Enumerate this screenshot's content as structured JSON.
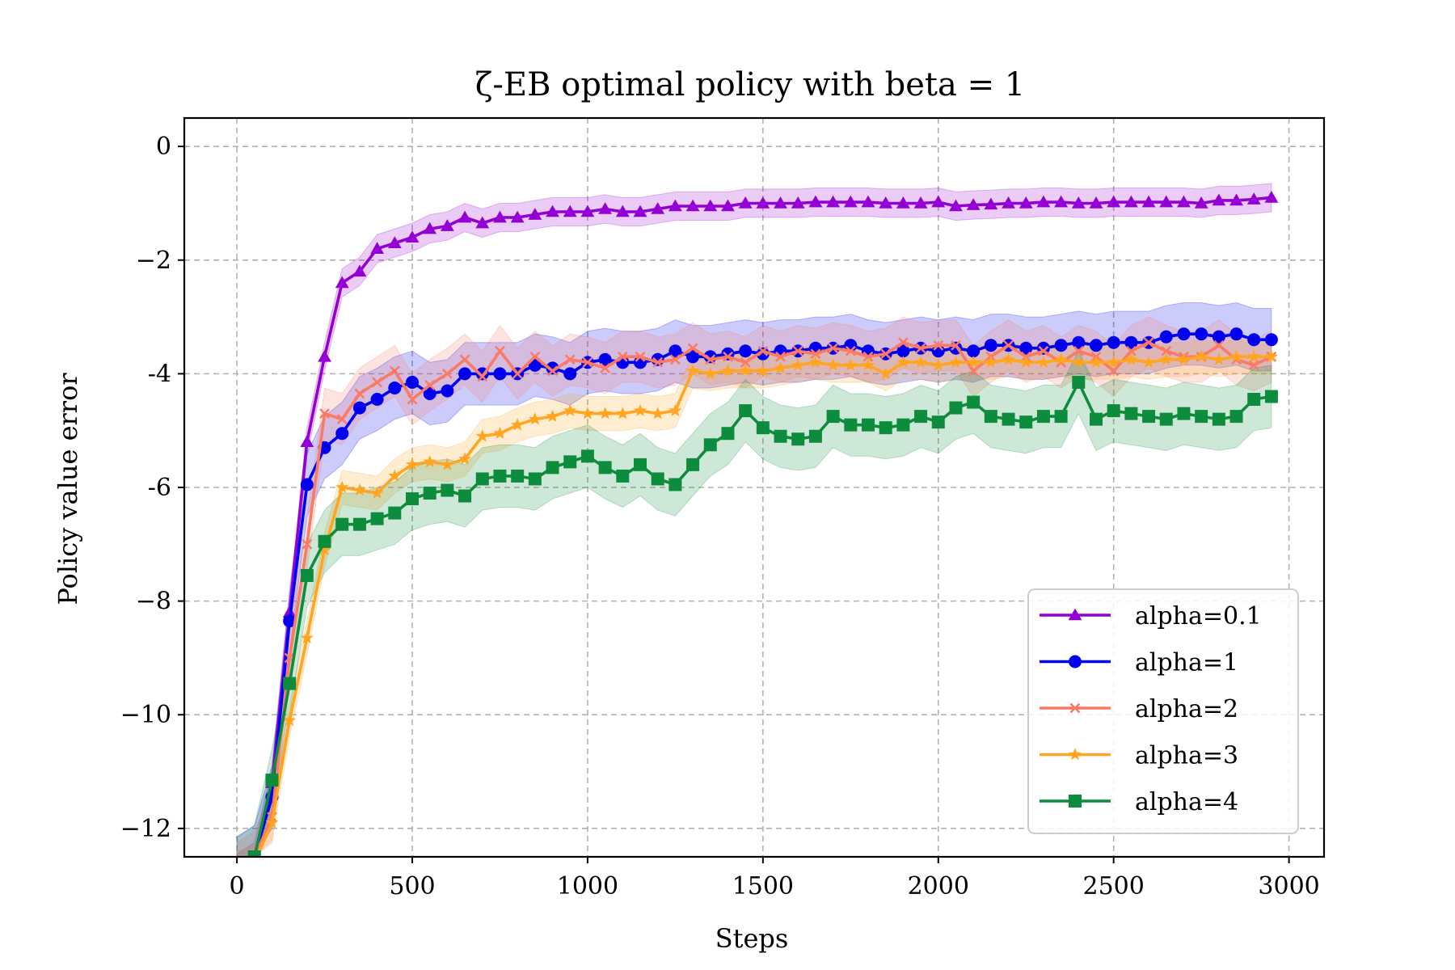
{
  "chart_data": {
    "type": "line",
    "title": "ζ-EB optimal policy with beta = 1",
    "xlabel": "Steps",
    "ylabel": "Policy value error",
    "xlim": [
      -150,
      3100
    ],
    "ylim": [
      -12.5,
      0.5
    ],
    "xticks": [
      0,
      500,
      1000,
      1500,
      2000,
      2500,
      3000
    ],
    "xtick_labels": [
      "0",
      "500",
      "1000",
      "1500",
      "2000",
      "2500",
      "3000"
    ],
    "yticks": [
      0,
      -2,
      -4,
      -6,
      -8,
      -10,
      -12
    ],
    "ytick_labels": [
      "0",
      "−2",
      "-4",
      "-6",
      "−8",
      "−10",
      "−12"
    ],
    "grid": true,
    "legend_position": "lower-right",
    "x": [
      0,
      50,
      100,
      150,
      200,
      250,
      300,
      350,
      400,
      450,
      500,
      550,
      600,
      650,
      700,
      750,
      800,
      850,
      900,
      950,
      1000,
      1050,
      1100,
      1150,
      1200,
      1250,
      1300,
      1350,
      1400,
      1450,
      1500,
      1550,
      1600,
      1650,
      1700,
      1750,
      1800,
      1850,
      1900,
      1950,
      2000,
      2050,
      2100,
      2150,
      2200,
      2250,
      2300,
      2350,
      2400,
      2450,
      2500,
      2550,
      2600,
      2650,
      2700,
      2750,
      2800,
      2850,
      2900,
      2950
    ],
    "series": [
      {
        "name": "alpha=0.1",
        "color": "#9400d3",
        "marker": "triangle",
        "values": [
          -12.7,
          -12.5,
          -11.2,
          -8.2,
          -5.2,
          -3.7,
          -2.4,
          -2.2,
          -1.8,
          -1.7,
          -1.6,
          -1.45,
          -1.4,
          -1.25,
          -1.35,
          -1.25,
          -1.25,
          -1.2,
          -1.15,
          -1.15,
          -1.15,
          -1.1,
          -1.15,
          -1.15,
          -1.1,
          -1.05,
          -1.05,
          -1.05,
          -1.05,
          -1.0,
          -1.0,
          -1.0,
          -1.0,
          -0.98,
          -0.98,
          -0.98,
          -0.98,
          -1.0,
          -1.0,
          -1.0,
          -0.98,
          -1.05,
          -1.03,
          -1.02,
          -1.0,
          -1.0,
          -0.98,
          -0.98,
          -1.0,
          -1.0,
          -0.98,
          -0.98,
          -0.98,
          -0.98,
          -0.98,
          -1.0,
          -0.95,
          -0.95,
          -0.93,
          -0.9
        ],
        "band": 0.25
      },
      {
        "name": "alpha=1",
        "color": "#0000ee",
        "marker": "circle",
        "values": [
          -12.7,
          -12.5,
          -11.45,
          -8.35,
          -5.95,
          -5.3,
          -5.05,
          -4.6,
          -4.45,
          -4.25,
          -4.15,
          -4.35,
          -4.3,
          -4.0,
          -4.0,
          -4.0,
          -4.0,
          -3.85,
          -3.9,
          -4.0,
          -3.8,
          -3.75,
          -3.8,
          -3.8,
          -3.75,
          -3.6,
          -3.7,
          -3.7,
          -3.65,
          -3.6,
          -3.65,
          -3.6,
          -3.6,
          -3.55,
          -3.55,
          -3.5,
          -3.6,
          -3.65,
          -3.6,
          -3.55,
          -3.6,
          -3.55,
          -3.6,
          -3.5,
          -3.5,
          -3.55,
          -3.55,
          -3.5,
          -3.45,
          -3.5,
          -3.45,
          -3.45,
          -3.45,
          -3.35,
          -3.3,
          -3.3,
          -3.35,
          -3.3,
          -3.4,
          -3.4
        ],
        "band": 0.55
      },
      {
        "name": "alpha=2",
        "color": "#fa7a64",
        "marker": "x",
        "values": [
          -12.7,
          -12.5,
          -11.8,
          -9.0,
          -7.0,
          -4.7,
          -4.8,
          -4.35,
          -4.15,
          -3.95,
          -4.45,
          -4.2,
          -4.0,
          -3.75,
          -4.05,
          -3.6,
          -4.0,
          -3.7,
          -3.95,
          -3.75,
          -3.8,
          -3.9,
          -3.7,
          -3.7,
          -3.8,
          -3.75,
          -3.55,
          -3.75,
          -3.7,
          -3.8,
          -3.6,
          -3.7,
          -3.6,
          -3.65,
          -3.55,
          -3.6,
          -3.7,
          -3.65,
          -3.45,
          -3.55,
          -3.5,
          -3.5,
          -3.95,
          -3.7,
          -3.5,
          -3.7,
          -3.6,
          -3.8,
          -3.6,
          -3.7,
          -3.95,
          -3.6,
          -3.45,
          -3.6,
          -3.7,
          -3.7,
          -3.5,
          -3.75,
          -3.85,
          -3.7
        ],
        "band": 0.45
      },
      {
        "name": "alpha=3",
        "color": "#ffa520",
        "marker": "star",
        "values": [
          -12.7,
          -12.6,
          -11.9,
          -10.1,
          -8.65,
          -7.1,
          -6.0,
          -6.05,
          -6.1,
          -5.8,
          -5.6,
          -5.55,
          -5.6,
          -5.5,
          -5.1,
          -5.05,
          -4.9,
          -4.8,
          -4.75,
          -4.65,
          -4.7,
          -4.7,
          -4.7,
          -4.65,
          -4.7,
          -4.65,
          -3.95,
          -4.0,
          -3.95,
          -3.95,
          -3.95,
          -3.9,
          -3.85,
          -3.8,
          -3.85,
          -3.85,
          -3.85,
          -4.0,
          -3.8,
          -3.8,
          -3.85,
          -3.8,
          -3.8,
          -3.8,
          -3.75,
          -3.8,
          -3.8,
          -3.75,
          -3.8,
          -3.8,
          -3.8,
          -3.75,
          -3.8,
          -3.75,
          -3.75,
          -3.7,
          -3.75,
          -3.7,
          -3.7,
          -3.7
        ],
        "band": 0.3
      },
      {
        "name": "alpha=4",
        "color": "#0c8c3c",
        "marker": "square",
        "values": [
          -12.7,
          -12.5,
          -11.15,
          -9.45,
          -7.55,
          -6.95,
          -6.65,
          -6.65,
          -6.55,
          -6.45,
          -6.2,
          -6.1,
          -6.05,
          -6.15,
          -5.85,
          -5.8,
          -5.8,
          -5.85,
          -5.65,
          -5.55,
          -5.45,
          -5.65,
          -5.8,
          -5.6,
          -5.85,
          -5.95,
          -5.6,
          -5.25,
          -5.05,
          -4.65,
          -4.95,
          -5.1,
          -5.15,
          -5.1,
          -4.75,
          -4.9,
          -4.9,
          -4.95,
          -4.9,
          -4.75,
          -4.85,
          -4.6,
          -4.5,
          -4.75,
          -4.8,
          -4.85,
          -4.75,
          -4.75,
          -4.15,
          -4.8,
          -4.65,
          -4.7,
          -4.75,
          -4.8,
          -4.7,
          -4.75,
          -4.8,
          -4.75,
          -4.45,
          -4.4
        ],
        "band": 0.55
      }
    ]
  }
}
